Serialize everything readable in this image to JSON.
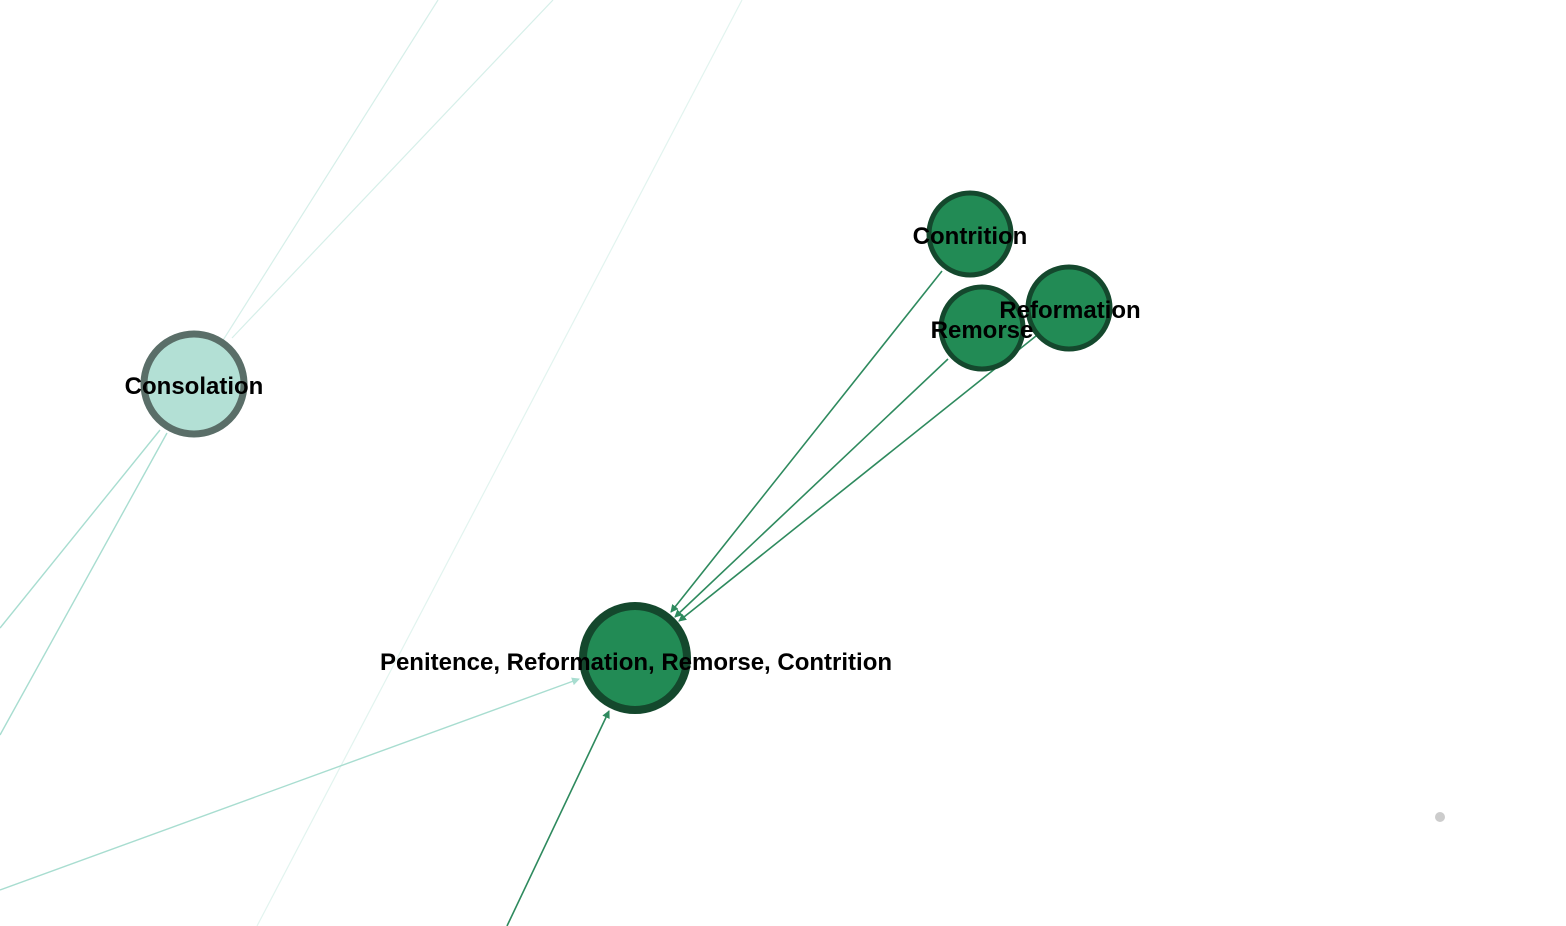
{
  "graph": {
    "nodes": {
      "consolation": {
        "label": "Consolation",
        "fill": "#b3e0d5",
        "stroke": "#5a6e68"
      },
      "contrition": {
        "label": "Contrition",
        "fill": "#228b55",
        "stroke": "#14482d"
      },
      "remorse": {
        "label": "Remorse",
        "fill": "#228b55",
        "stroke": "#14482d"
      },
      "reformation": {
        "label": "Reformation",
        "fill": "#228b55",
        "stroke": "#14482d"
      },
      "penitence": {
        "label": "Penitence, Reformation, Remorse, Contrition",
        "fill": "#228b55",
        "stroke": "#14482d"
      }
    },
    "colors": {
      "edge_strong": "#2e8a5e",
      "edge_light": "#a8ddd0",
      "edge_faint": "#d6efe9",
      "dot": "#cccccc"
    }
  }
}
